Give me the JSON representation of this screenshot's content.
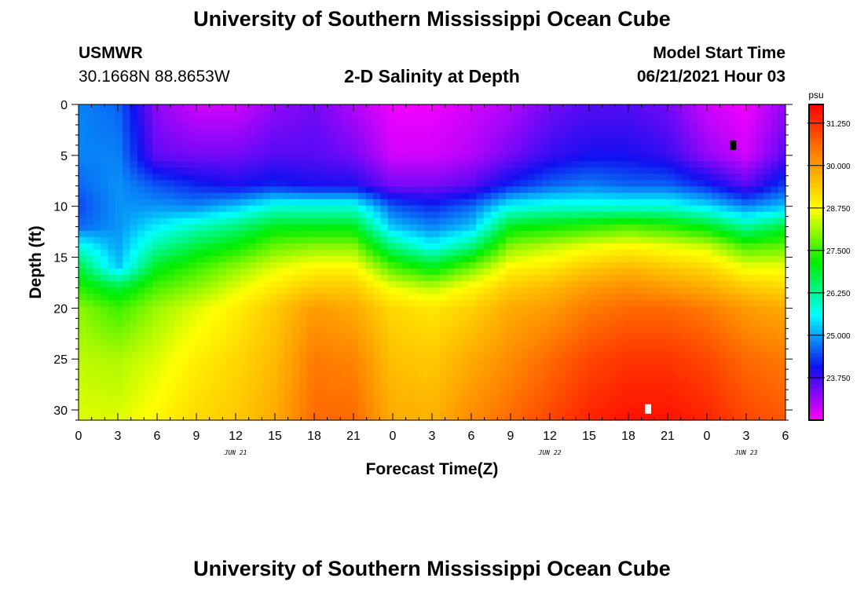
{
  "header": {
    "title": "University of Southern Mississippi Ocean Cube",
    "station": "USMWR",
    "coords": "30.1668N  88.8653W",
    "plot_title": "2-D Salinity at Depth",
    "model_label": "Model Start Time",
    "model_time": "06/21/2021 Hour 03"
  },
  "footer": {
    "title": "University of Southern Mississippi Ocean Cube"
  },
  "colors": {
    "text": "#000000",
    "background": "#ffffff",
    "scale": [
      "#ff00ff",
      "#1010f0",
      "#00ffff",
      "#00ee00",
      "#ffff00",
      "#ff8800",
      "#ff0000"
    ]
  },
  "chart_data": {
    "type": "heatmap",
    "title": "2-D Salinity at Depth",
    "xlabel": "Forecast Time(Z)",
    "ylabel": "Depth (ft)",
    "xlim": [
      0,
      54
    ],
    "ylim": [
      0,
      31
    ],
    "x_ticks": [
      0,
      3,
      6,
      9,
      12,
      15,
      18,
      21,
      24,
      27,
      30,
      33,
      36,
      39,
      42,
      45,
      48,
      51,
      54
    ],
    "x_tick_labels": [
      "0",
      "3",
      "6",
      "9",
      "12",
      "15",
      "18",
      "21",
      "0",
      "3",
      "6",
      "9",
      "12",
      "15",
      "18",
      "21",
      "0",
      "3",
      "6"
    ],
    "y_ticks": [
      0,
      5,
      10,
      15,
      20,
      25,
      30
    ],
    "y_tick_labels": [
      "0",
      "5",
      "10",
      "15",
      "20",
      "25",
      "30"
    ],
    "date_labels": [
      {
        "x": 12,
        "text": "JUN 21"
      },
      {
        "x": 36,
        "text": "JUN 22"
      },
      {
        "x": 51,
        "text": "JUN 23"
      }
    ],
    "colorbar": {
      "unit": "psu",
      "min": 22.5,
      "max": 31.8,
      "ticks": [
        23.75,
        25.0,
        26.25,
        27.5,
        28.75,
        30.0,
        31.25
      ],
      "tick_labels": [
        "23.750",
        "25.000",
        "26.250",
        "27.500",
        "28.750",
        "30.000",
        "31.250"
      ]
    },
    "time_hours": [
      0,
      3,
      6,
      9,
      12,
      15,
      18,
      21,
      24,
      27,
      30,
      33,
      36,
      39,
      42,
      45,
      48,
      51,
      54
    ],
    "depth_ft": [
      0,
      5,
      8,
      10,
      12,
      14,
      16,
      18,
      20,
      25,
      31
    ],
    "salinity_psu": [
      [
        24.8,
        24.8,
        24.6,
        24.4,
        24.6,
        25.8,
        26.8,
        27.4,
        28.0,
        28.3,
        28.5
      ],
      [
        24.6,
        24.8,
        24.9,
        24.9,
        24.9,
        25.0,
        25.2,
        26.8,
        27.5,
        28.2,
        28.5
      ],
      [
        23.2,
        23.5,
        24.5,
        24.9,
        25.5,
        26.2,
        27.0,
        27.6,
        28.1,
        28.5,
        28.8
      ],
      [
        22.8,
        23.4,
        24.2,
        24.8,
        26.0,
        26.8,
        27.5,
        28.0,
        28.5,
        28.9,
        29.2
      ],
      [
        22.8,
        23.4,
        24.0,
        25.2,
        26.4,
        27.2,
        28.0,
        28.5,
        28.9,
        29.2,
        29.4
      ],
      [
        23.2,
        23.6,
        24.2,
        25.8,
        27.0,
        27.8,
        28.5,
        29.0,
        29.4,
        29.6,
        29.8
      ],
      [
        23.4,
        23.6,
        24.0,
        25.8,
        27.0,
        28.0,
        28.8,
        29.4,
        30.0,
        30.4,
        30.6
      ],
      [
        23.0,
        23.4,
        24.0,
        25.8,
        27.0,
        28.0,
        28.8,
        29.4,
        29.8,
        30.3,
        30.6
      ],
      [
        22.6,
        22.8,
        23.4,
        24.5,
        25.2,
        26.4,
        27.6,
        28.6,
        29.2,
        29.5,
        29.8
      ],
      [
        22.6,
        22.8,
        23.4,
        24.2,
        24.8,
        25.6,
        27.0,
        28.3,
        29.0,
        29.4,
        29.7
      ],
      [
        22.8,
        23.0,
        23.6,
        24.6,
        25.2,
        26.4,
        27.8,
        28.8,
        29.3,
        29.8,
        30.2
      ],
      [
        23.0,
        23.4,
        24.2,
        25.6,
        27.0,
        28.0,
        28.8,
        29.4,
        29.8,
        30.2,
        30.6
      ],
      [
        23.4,
        23.8,
        24.6,
        25.8,
        27.2,
        28.3,
        29.0,
        29.6,
        30.0,
        30.6,
        31.0
      ],
      [
        23.6,
        24.0,
        24.8,
        25.8,
        27.4,
        28.6,
        29.4,
        30.0,
        30.4,
        31.0,
        31.4
      ],
      [
        23.6,
        24.0,
        24.6,
        25.8,
        27.6,
        28.8,
        29.6,
        30.2,
        30.6,
        31.2,
        31.6
      ],
      [
        23.4,
        23.8,
        24.6,
        25.8,
        27.4,
        28.6,
        29.4,
        30.0,
        30.6,
        31.2,
        31.6
      ],
      [
        22.8,
        23.2,
        24.2,
        25.4,
        27.0,
        28.4,
        29.2,
        29.8,
        30.4,
        31.0,
        31.4
      ],
      [
        22.6,
        22.8,
        23.6,
        24.8,
        26.2,
        27.6,
        28.6,
        29.4,
        30.0,
        30.6,
        31.0
      ],
      [
        23.2,
        23.6,
        24.4,
        25.2,
        26.8,
        27.8,
        28.6,
        29.2,
        29.8,
        30.4,
        30.8
      ]
    ],
    "markers": [
      {
        "x": 50.0,
        "depth": 4.0,
        "color": "#000000"
      },
      {
        "x": 43.5,
        "depth": 29.9,
        "color": "#ffffff"
      }
    ]
  }
}
